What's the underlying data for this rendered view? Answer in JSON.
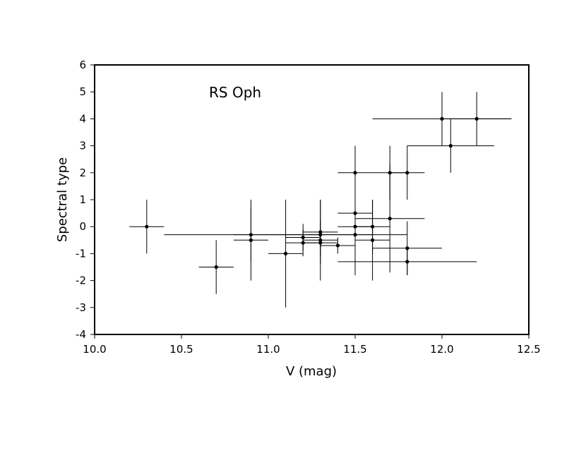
{
  "chart_data": {
    "type": "scatter",
    "title": "",
    "annotation": "RS Oph",
    "xlabel": "V (mag)",
    "ylabel": "Spectral type",
    "xlim": [
      10.0,
      12.5
    ],
    "ylim": [
      -4,
      6
    ],
    "x_ticks": [
      "10.0",
      "10.5",
      "11.0",
      "11.5",
      "12.0",
      "12.5"
    ],
    "y_ticks": [
      "-4",
      "-3",
      "-2",
      "-1",
      "0",
      "1",
      "2",
      "3",
      "4",
      "5",
      "6"
    ],
    "grid": false,
    "colors": {
      "marks": "#000000",
      "background": "#ffffff"
    },
    "points": [
      {
        "x": 10.3,
        "y": 0,
        "xerr": 0.1,
        "yerr": 1
      },
      {
        "x": 10.7,
        "y": -1.5,
        "xerr": 0.1,
        "yerr": 1
      },
      {
        "x": 10.9,
        "y": -0.3,
        "xerr": 0.5,
        "yerr": 1
      },
      {
        "x": 10.9,
        "y": -0.5,
        "xerr": 0.1,
        "yerr": 1.5
      },
      {
        "x": 11.1,
        "y": -1,
        "xerr": 0.1,
        "yerr": 2
      },
      {
        "x": 11.2,
        "y": -0.4,
        "xerr": 0.1,
        "yerr": 0.5
      },
      {
        "x": 11.2,
        "y": -0.6,
        "xerr": 0.1,
        "yerr": 0.5
      },
      {
        "x": 11.3,
        "y": -0.2,
        "xerr": 0.1,
        "yerr": 1.2
      },
      {
        "x": 11.3,
        "y": -0.3,
        "xerr": 0.5,
        "yerr": 0.5
      },
      {
        "x": 11.3,
        "y": -0.5,
        "xerr": 0.1,
        "yerr": 1.5
      },
      {
        "x": 11.3,
        "y": -0.6,
        "xerr": 0.1,
        "yerr": 0.5
      },
      {
        "x": 11.4,
        "y": -0.7,
        "xerr": 0.1,
        "yerr": 0.3
      },
      {
        "x": 11.5,
        "y": 2,
        "xerr": 0.1,
        "yerr": 1
      },
      {
        "x": 11.5,
        "y": 0.5,
        "xerr": 0.1,
        "yerr": 1.5
      },
      {
        "x": 11.5,
        "y": 0,
        "xerr": 0.1,
        "yerr": 1
      },
      {
        "x": 11.5,
        "y": -0.3,
        "xerr": 0.1,
        "yerr": 1.5
      },
      {
        "x": 11.6,
        "y": 0,
        "xerr": 0.1,
        "yerr": 1
      },
      {
        "x": 11.6,
        "y": -0.5,
        "xerr": 0.1,
        "yerr": 1.5
      },
      {
        "x": 11.7,
        "y": 2,
        "xerr": 0.1,
        "yerr": 1
      },
      {
        "x": 11.7,
        "y": 0.3,
        "xerr": 0.2,
        "yerr": 2
      },
      {
        "x": 11.8,
        "y": 2,
        "xerr": 0.1,
        "yerr": 1
      },
      {
        "x": 11.8,
        "y": -0.8,
        "xerr": 0.2,
        "yerr": 1
      },
      {
        "x": 11.8,
        "y": -1.3,
        "xerr": 0.4,
        "yerr": 0.5
      },
      {
        "x": 12.0,
        "y": 4,
        "xerr": 0.4,
        "yerr": 1
      },
      {
        "x": 12.05,
        "y": 3,
        "xerr": 0.25,
        "yerr": 1
      },
      {
        "x": 12.2,
        "y": 4,
        "xerr": 0.2,
        "yerr": 1
      }
    ]
  }
}
